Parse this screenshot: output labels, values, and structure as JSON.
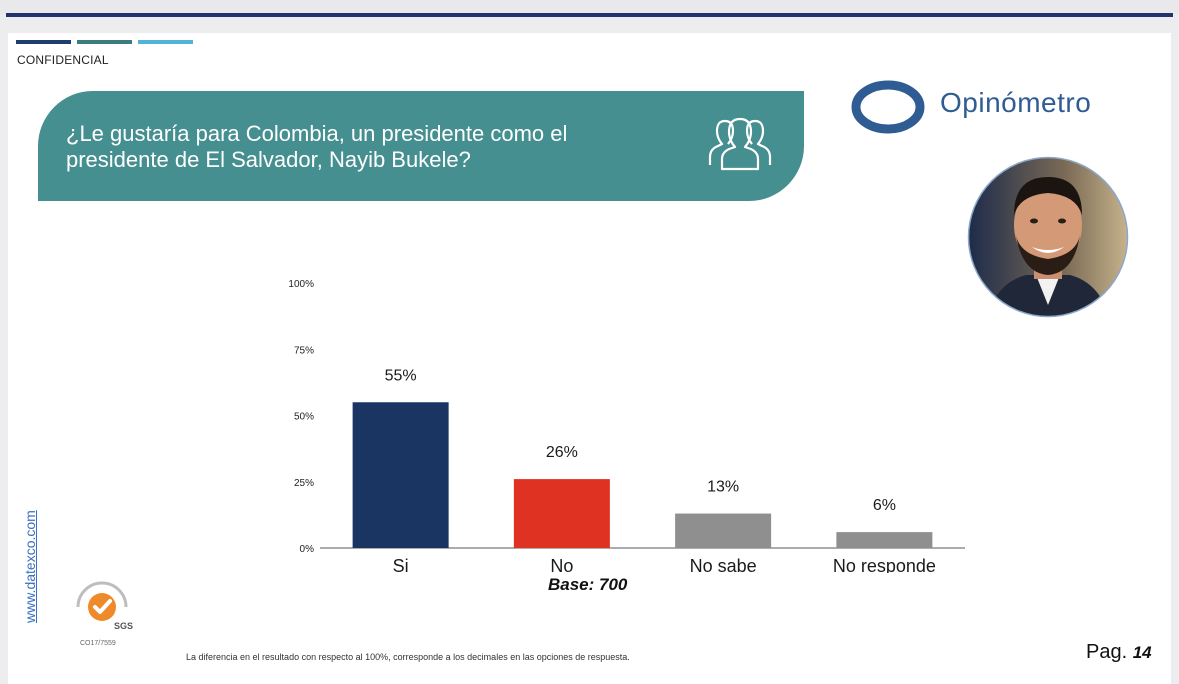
{
  "header": {
    "confidential": "CONFIDENCIAL"
  },
  "banner": {
    "question": "¿Le gustaría para Colombia, un presidente como el presidente de El Salvador, Nayib Bukele?"
  },
  "logo": {
    "name": "Opinómetro"
  },
  "icons": {
    "people": "people-group-icon",
    "logo_mark": "opinometro-logo-icon",
    "portrait": "portrait-photo",
    "seal": "sgs-certification-seal"
  },
  "colors": {
    "banner": "#458f91",
    "si": "#1a3561",
    "no": "#e03222",
    "gray": "#8f8f8f",
    "title_text": "#ffffff"
  },
  "chart_data": {
    "type": "bar",
    "categories": [
      "Si",
      "No",
      "No sabe",
      "No responde"
    ],
    "values": [
      55,
      26,
      13,
      6
    ],
    "value_labels": [
      "55%",
      "26%",
      "13%",
      "6%"
    ],
    "y_ticks": [
      "0%",
      "25%",
      "50%",
      "75%",
      "100%"
    ],
    "ylim": [
      0,
      100
    ],
    "title": "¿Le gustaría para Colombia, un presidente como el presidente de El Salvador, Nayib Bukele?",
    "xlabel": "",
    "ylabel": "",
    "grid": false
  },
  "base": "Base: 700",
  "footnote": "La diferencia en el resultado con respecto al 100%, corresponde a los decimales en las opciones de respuesta.",
  "side_link": "www.datexco.com",
  "seal": {
    "label": "SGS",
    "code": "CO17/7559"
  },
  "page": {
    "prefix": "Pag.",
    "number": "14"
  }
}
